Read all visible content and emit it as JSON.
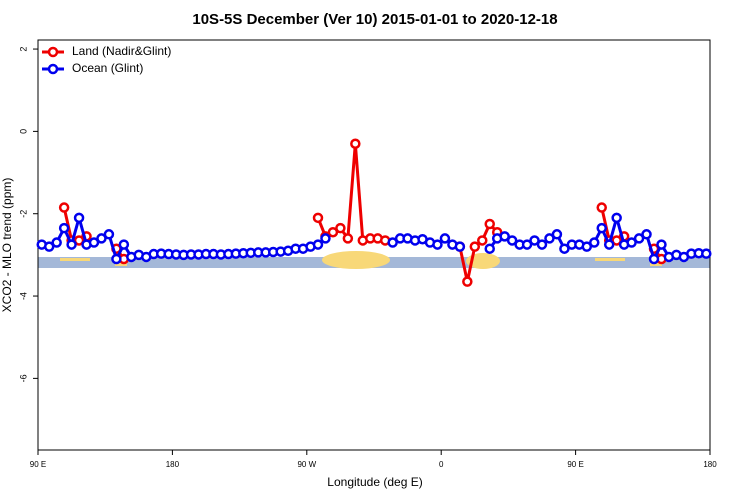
{
  "chart_data": {
    "type": "line",
    "title": "10S-5S December (Ver 10)   2015-01-01 to 2020-12-18",
    "x_label": "Longitude (deg E)",
    "y_label": "XCO2 - MLO trend (ppm)",
    "x": [
      92.5,
      97.5,
      102.5,
      107.5,
      112.5,
      117.5,
      122.5,
      127.5,
      132.5,
      137.5,
      142.5,
      147.5,
      152.5,
      157.5,
      162.5,
      167.5,
      172.5,
      177.5,
      182.5,
      187.5,
      192.5,
      197.5,
      202.5,
      207.5,
      212.5,
      217.5,
      222.5,
      227.5,
      232.5,
      237.5,
      242.5,
      247.5,
      252.5,
      257.5,
      262.5,
      267.5,
      272.5,
      277.5,
      282.5,
      287.5,
      292.5,
      297.5,
      302.5,
      307.5,
      312.5,
      317.5,
      322.5,
      327.5,
      332.5,
      337.5,
      342.5,
      347.5,
      352.5,
      357.5,
      362.5,
      367.5,
      372.5,
      377.5,
      382.5,
      387.5,
      392.5,
      397.5,
      402.5,
      407.5,
      412.5,
      417.5,
      422.5,
      427.5,
      432.5,
      437.5,
      442.5,
      447.5,
      452.5,
      457.5,
      462.5,
      467.5,
      472.5,
      477.5,
      482.5,
      487.5,
      492.5,
      497.5,
      502.5,
      507.5,
      512.5,
      517.5,
      522.5,
      527.5,
      532.5,
      537.5
    ],
    "series": [
      {
        "name": "Land (Nadir&Glint)",
        "color": "#ee0000",
        "values": [
          null,
          null,
          null,
          -1.85,
          -2.65,
          -2.65,
          -2.55,
          null,
          null,
          null,
          -2.85,
          -3.1,
          null,
          null,
          null,
          null,
          null,
          null,
          null,
          null,
          null,
          null,
          null,
          null,
          null,
          null,
          null,
          null,
          null,
          null,
          null,
          null,
          null,
          null,
          null,
          null,
          null,
          -2.1,
          -2.55,
          -2.45,
          -2.35,
          -2.6,
          -0.3,
          -2.65,
          -2.6,
          -2.6,
          -2.65,
          null,
          null,
          null,
          null,
          null,
          null,
          null,
          null,
          null,
          -2.8,
          -3.65,
          -2.8,
          -2.65,
          -2.25,
          -2.45,
          null,
          null,
          null,
          null,
          null,
          null,
          null,
          null,
          null,
          null,
          null,
          null,
          null,
          -1.85,
          -2.65,
          -2.65,
          -2.55,
          null,
          null,
          null,
          -2.85,
          -3.1,
          null,
          null,
          null,
          null,
          null,
          null
        ]
      },
      {
        "name": "Ocean (Glint)",
        "color": "#0000ee",
        "values": [
          -2.75,
          -2.8,
          -2.7,
          -2.35,
          -2.75,
          -2.1,
          -2.75,
          -2.7,
          -2.6,
          -2.5,
          -3.1,
          -2.75,
          -3.05,
          -3.0,
          -3.05,
          -2.98,
          -2.97,
          -2.98,
          -2.99,
          -3.0,
          -2.99,
          -2.99,
          -2.98,
          -2.98,
          -2.99,
          -2.98,
          -2.97,
          -2.96,
          -2.95,
          -2.94,
          -2.94,
          -2.93,
          -2.92,
          -2.9,
          -2.85,
          -2.85,
          -2.8,
          -2.75,
          -2.6,
          null,
          null,
          null,
          null,
          null,
          null,
          null,
          null,
          -2.7,
          -2.6,
          -2.6,
          -2.65,
          -2.62,
          -2.7,
          -2.75,
          -2.6,
          -2.75,
          -2.8,
          null,
          null,
          null,
          -2.85,
          -2.6,
          -2.55,
          -2.65,
          -2.75,
          -2.75,
          -2.65,
          -2.75,
          -2.6,
          -2.5,
          -2.85,
          -2.75,
          -2.75,
          -2.8,
          -2.7,
          -2.35,
          -2.75,
          -2.1,
          -2.75,
          -2.7,
          -2.6,
          -2.5,
          -3.1,
          -2.75,
          -3.05,
          -3.0,
          -3.05,
          -2.97,
          -2.96,
          -2.97
        ]
      }
    ],
    "xlim": [
      90,
      540
    ],
    "xticks": [
      {
        "value": 90,
        "label": "90 E"
      },
      {
        "value": 180,
        "label": "180"
      },
      {
        "value": 270,
        "label": "90 W"
      },
      {
        "value": 360,
        "label": "0"
      },
      {
        "value": 450,
        "label": "90 E"
      },
      {
        "value": 540,
        "label": "180"
      }
    ],
    "ylim": [
      -7.74,
      2.22
    ],
    "yticks": [
      -6,
      -4,
      -2,
      0,
      2
    ],
    "legend": "top-left"
  }
}
